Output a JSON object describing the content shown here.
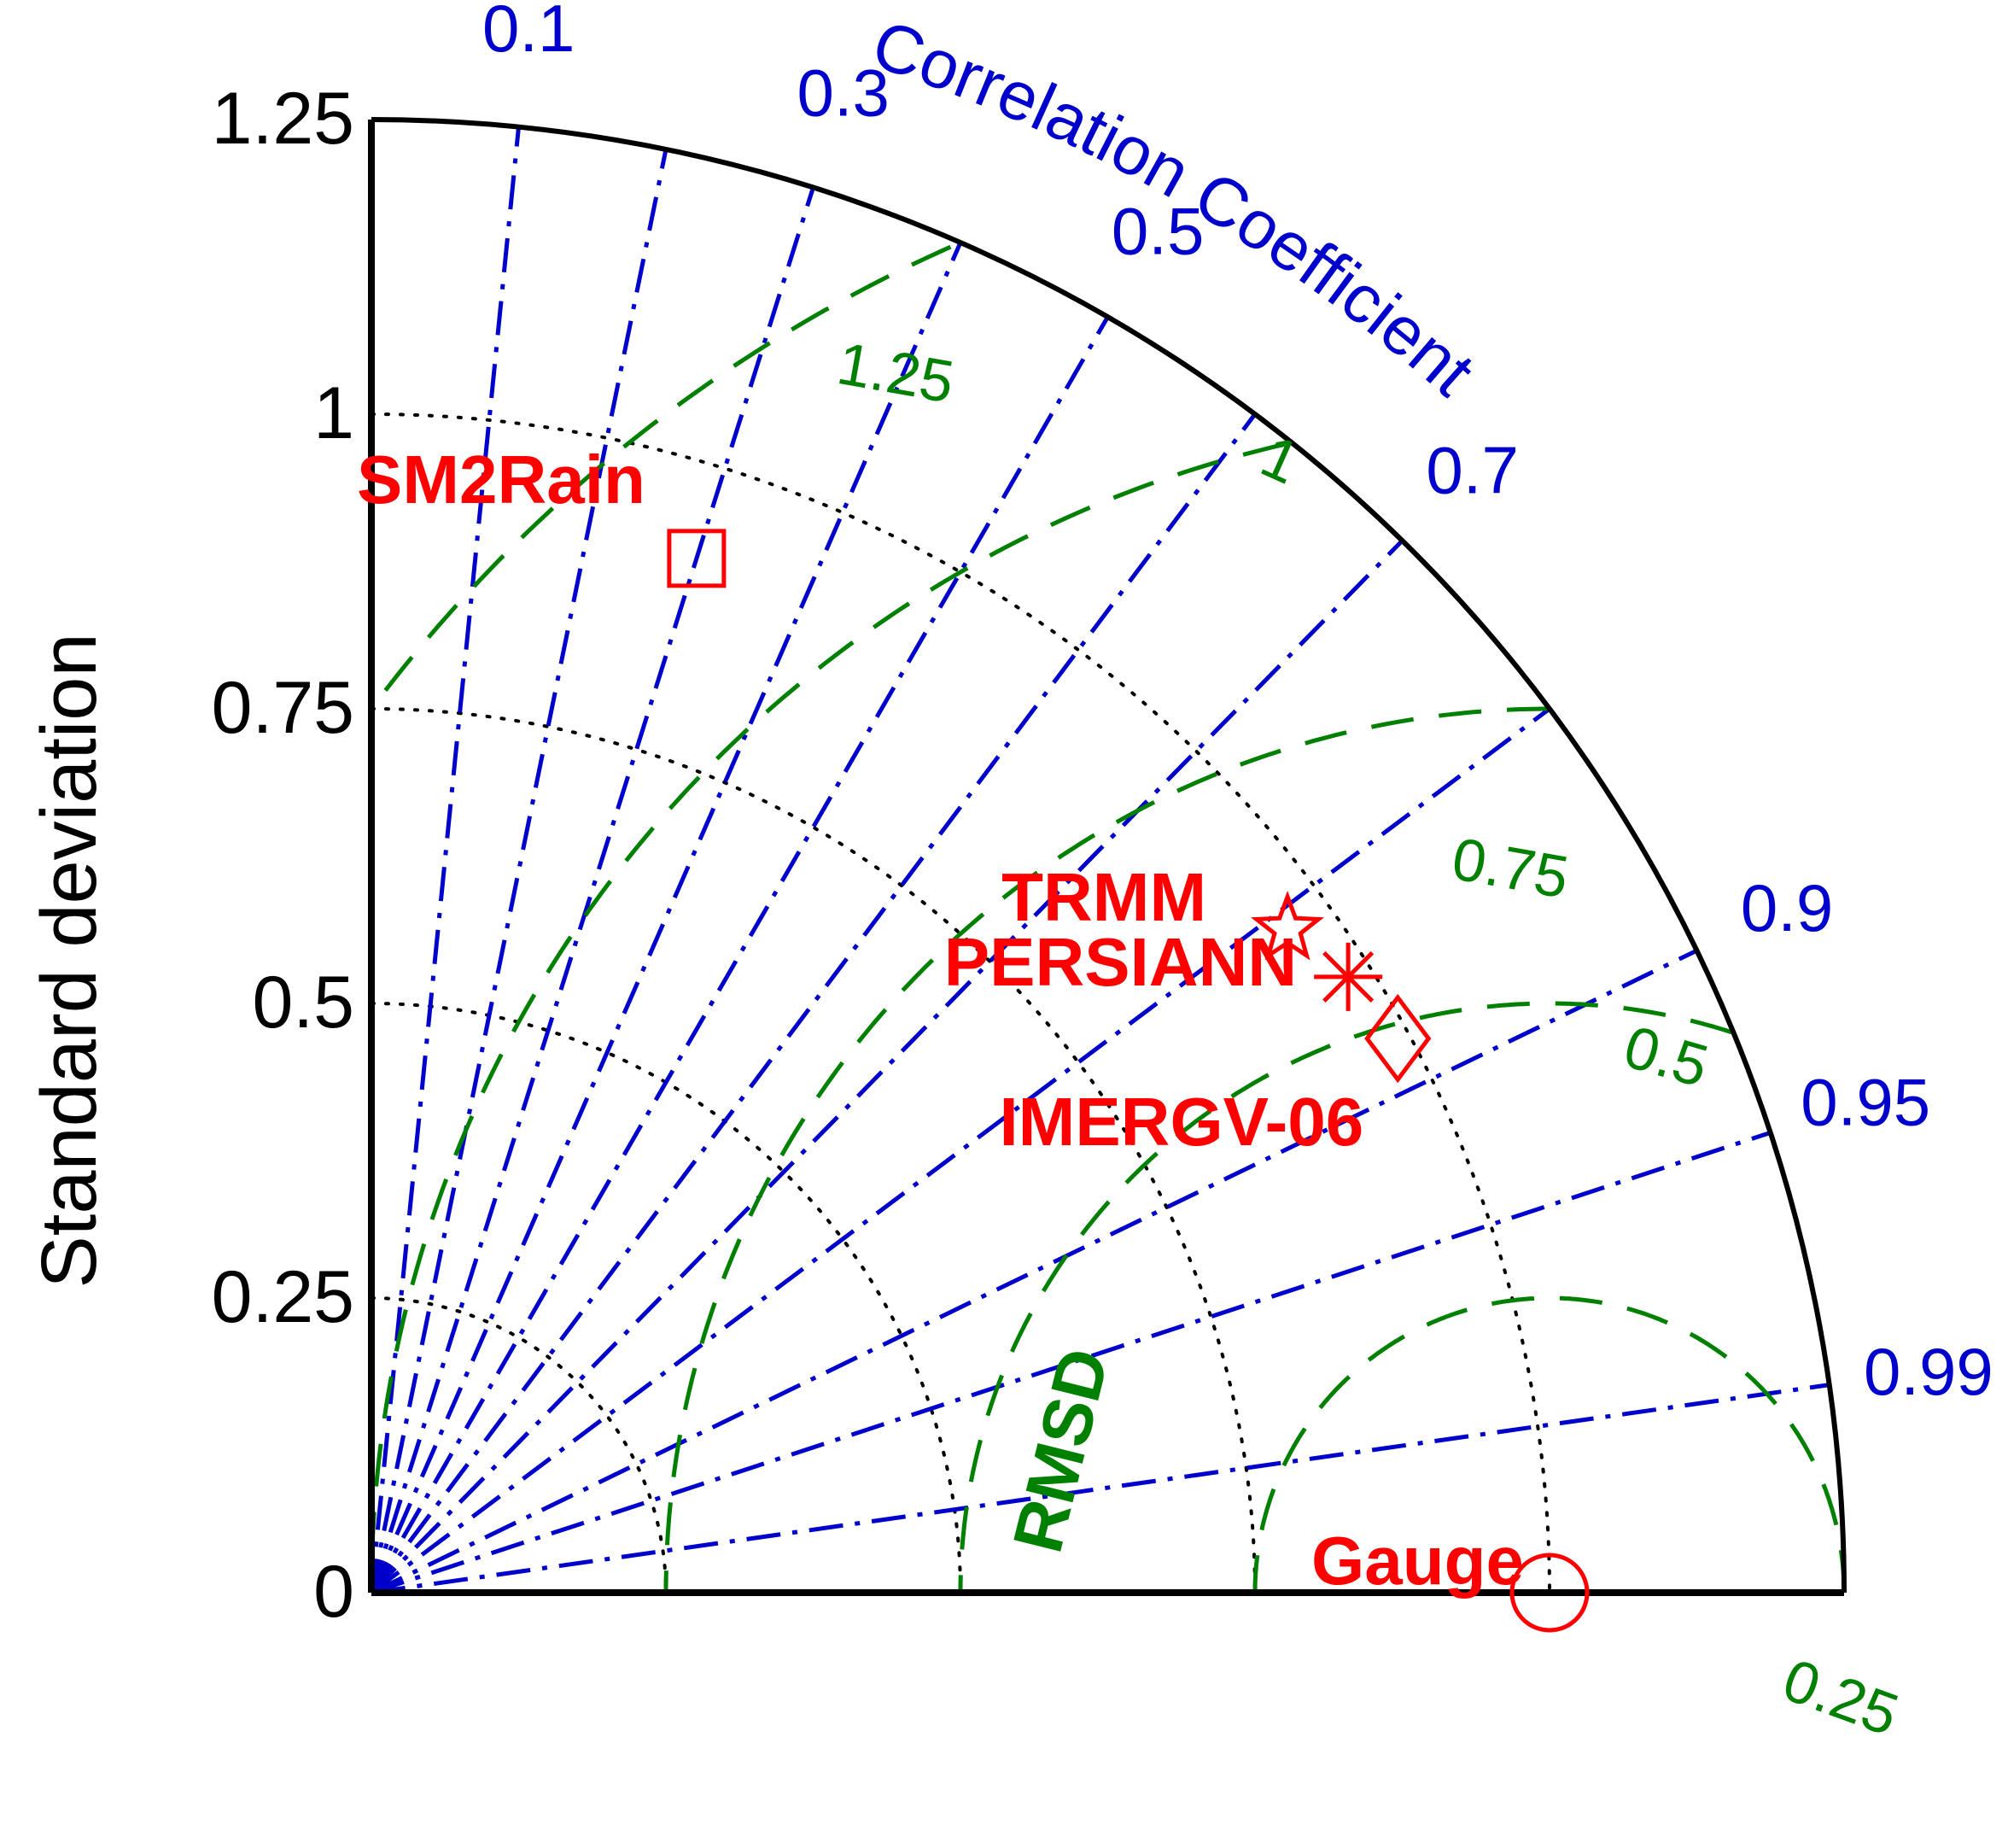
{
  "chart_data": {
    "type": "taylor",
    "ylabel": "Standard deviation",
    "corr_axis_label": "Correlation Coefficient",
    "rmsd_label": "RMSD",
    "std_range": [
      0,
      1.25
    ],
    "std_ticks": [
      "0",
      "0.25",
      "0.5",
      "0.75",
      "1",
      "1.25"
    ],
    "std_tick_values": [
      0,
      0.25,
      0.5,
      0.75,
      1,
      1.25
    ],
    "corr_tick_values": [
      0.1,
      0.2,
      0.3,
      0.4,
      0.5,
      0.6,
      0.7,
      0.8,
      0.9,
      0.95,
      0.99
    ],
    "corr_labels": [
      {
        "value": 0.1,
        "text": "0.1"
      },
      {
        "value": 0.3,
        "text": "0.3"
      },
      {
        "value": 0.5,
        "text": "0.5"
      },
      {
        "value": 0.7,
        "text": "0.7"
      },
      {
        "value": 0.9,
        "text": "0.9"
      },
      {
        "value": 0.95,
        "text": "0.95"
      },
      {
        "value": 0.99,
        "text": "0.99"
      }
    ],
    "rmsd_reference_std": 1.0,
    "rmsd_levels": [
      {
        "value": 0.25,
        "text": "0.25"
      },
      {
        "value": 0.5,
        "text": "0.5"
      },
      {
        "value": 0.75,
        "text": "0.75"
      },
      {
        "value": 1,
        "text": "1"
      },
      {
        "value": 1.25,
        "text": "1.25"
      }
    ],
    "points": [
      {
        "name": "SM2Rain",
        "marker": "square",
        "std": 0.92,
        "corr": 0.3
      },
      {
        "name": "TRMM",
        "marker": "star",
        "std": 0.96,
        "corr": 0.81
      },
      {
        "name": "PERSIANN",
        "marker": "asterisk",
        "std": 0.98,
        "corr": 0.846
      },
      {
        "name": "IMERGV-06",
        "marker": "diamond",
        "std": 0.99,
        "corr": 0.88
      },
      {
        "name": "Gauge",
        "marker": "circle",
        "std": 1.0,
        "corr": 1.0
      }
    ],
    "colors": {
      "axis": "#000000",
      "correlation": "#0000cc",
      "rmsd": "#008000",
      "std_arcs": "#000000",
      "markers": "#ff0000"
    }
  }
}
